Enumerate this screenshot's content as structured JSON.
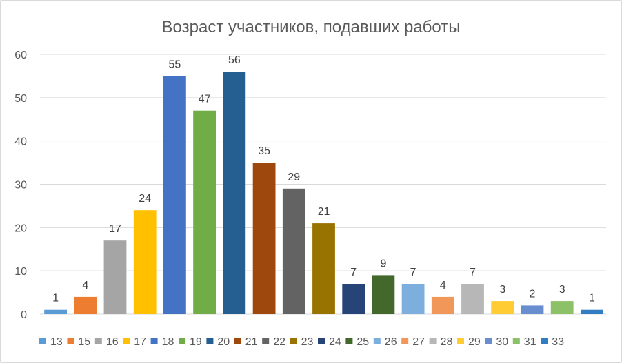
{
  "chart_data": {
    "type": "bar",
    "title": "Возраст участников, подавших работы",
    "xlabel": "",
    "ylabel": "",
    "ylim": [
      0,
      60
    ],
    "yticks": [
      "0",
      "10",
      "20",
      "30",
      "40",
      "50",
      "60"
    ],
    "grid": true,
    "legend_position": "bottom",
    "categories": [
      "13",
      "15",
      "16",
      "17",
      "18",
      "19",
      "20",
      "21",
      "22",
      "23",
      "24",
      "25",
      "26",
      "27",
      "28",
      "29",
      "30",
      "31",
      "33"
    ],
    "values": [
      1,
      4,
      17,
      24,
      55,
      47,
      56,
      35,
      29,
      21,
      7,
      9,
      7,
      4,
      7,
      3,
      2,
      3,
      1
    ],
    "data_labels": [
      "1",
      "4",
      "17",
      "24",
      "55",
      "47",
      "56",
      "35",
      "29",
      "21",
      "7",
      "9",
      "7",
      "4",
      "7",
      "3",
      "2",
      "3",
      "1"
    ],
    "colors": [
      "#5B9BD5",
      "#ED7D31",
      "#A5A5A5",
      "#FFC000",
      "#4472C4",
      "#70AD47",
      "#255E91",
      "#9E480E",
      "#636363",
      "#997300",
      "#264478",
      "#43682B",
      "#7CAFDD",
      "#F1975A",
      "#B7B7B7",
      "#FFCD33",
      "#698ED0",
      "#8CC168",
      "#327DC2"
    ]
  }
}
